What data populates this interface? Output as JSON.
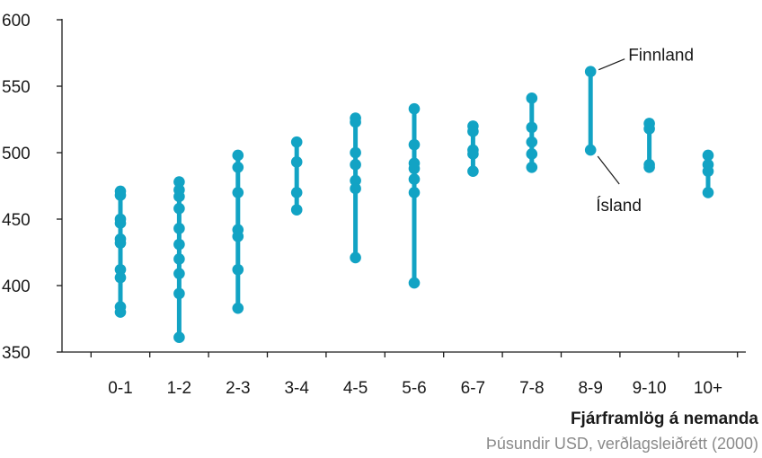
{
  "chart_data": {
    "type": "scatter",
    "title": "",
    "xlabel": "Fjárframlög á nemanda",
    "xlabel_sub": "Þúsundir USD, verðlagsleiðrétt (2000)",
    "ylabel": "",
    "ylim": [
      350,
      600
    ],
    "yticks": [
      350,
      400,
      450,
      500,
      550,
      600
    ],
    "categories": [
      "0-1",
      "1-2",
      "2-3",
      "3-4",
      "4-5",
      "5-6",
      "6-7",
      "7-8",
      "8-9",
      "9-10",
      "10+"
    ],
    "values": [
      [
        471,
        468,
        450,
        447,
        435,
        432,
        412,
        406,
        384,
        380
      ],
      [
        478,
        472,
        467,
        458,
        443,
        431,
        420,
        409,
        394,
        361
      ],
      [
        498,
        489,
        470,
        442,
        437,
        412,
        383
      ],
      [
        508,
        493,
        470,
        457
      ],
      [
        526,
        523,
        500,
        491,
        479,
        473,
        421
      ],
      [
        533,
        506,
        492,
        488,
        480,
        470,
        402
      ],
      [
        520,
        516,
        502,
        499,
        486
      ],
      [
        541,
        519,
        508,
        499,
        489
      ],
      [
        561,
        502
      ],
      [
        522,
        518,
        491,
        489
      ],
      [
        498,
        491,
        486,
        470
      ]
    ],
    "color": "#12a3c4",
    "grid": false,
    "annotations": [
      {
        "text": "Finnland",
        "category": "8-9",
        "value": 561
      },
      {
        "text": "Ísland",
        "category": "8-9",
        "value": 502
      }
    ]
  }
}
